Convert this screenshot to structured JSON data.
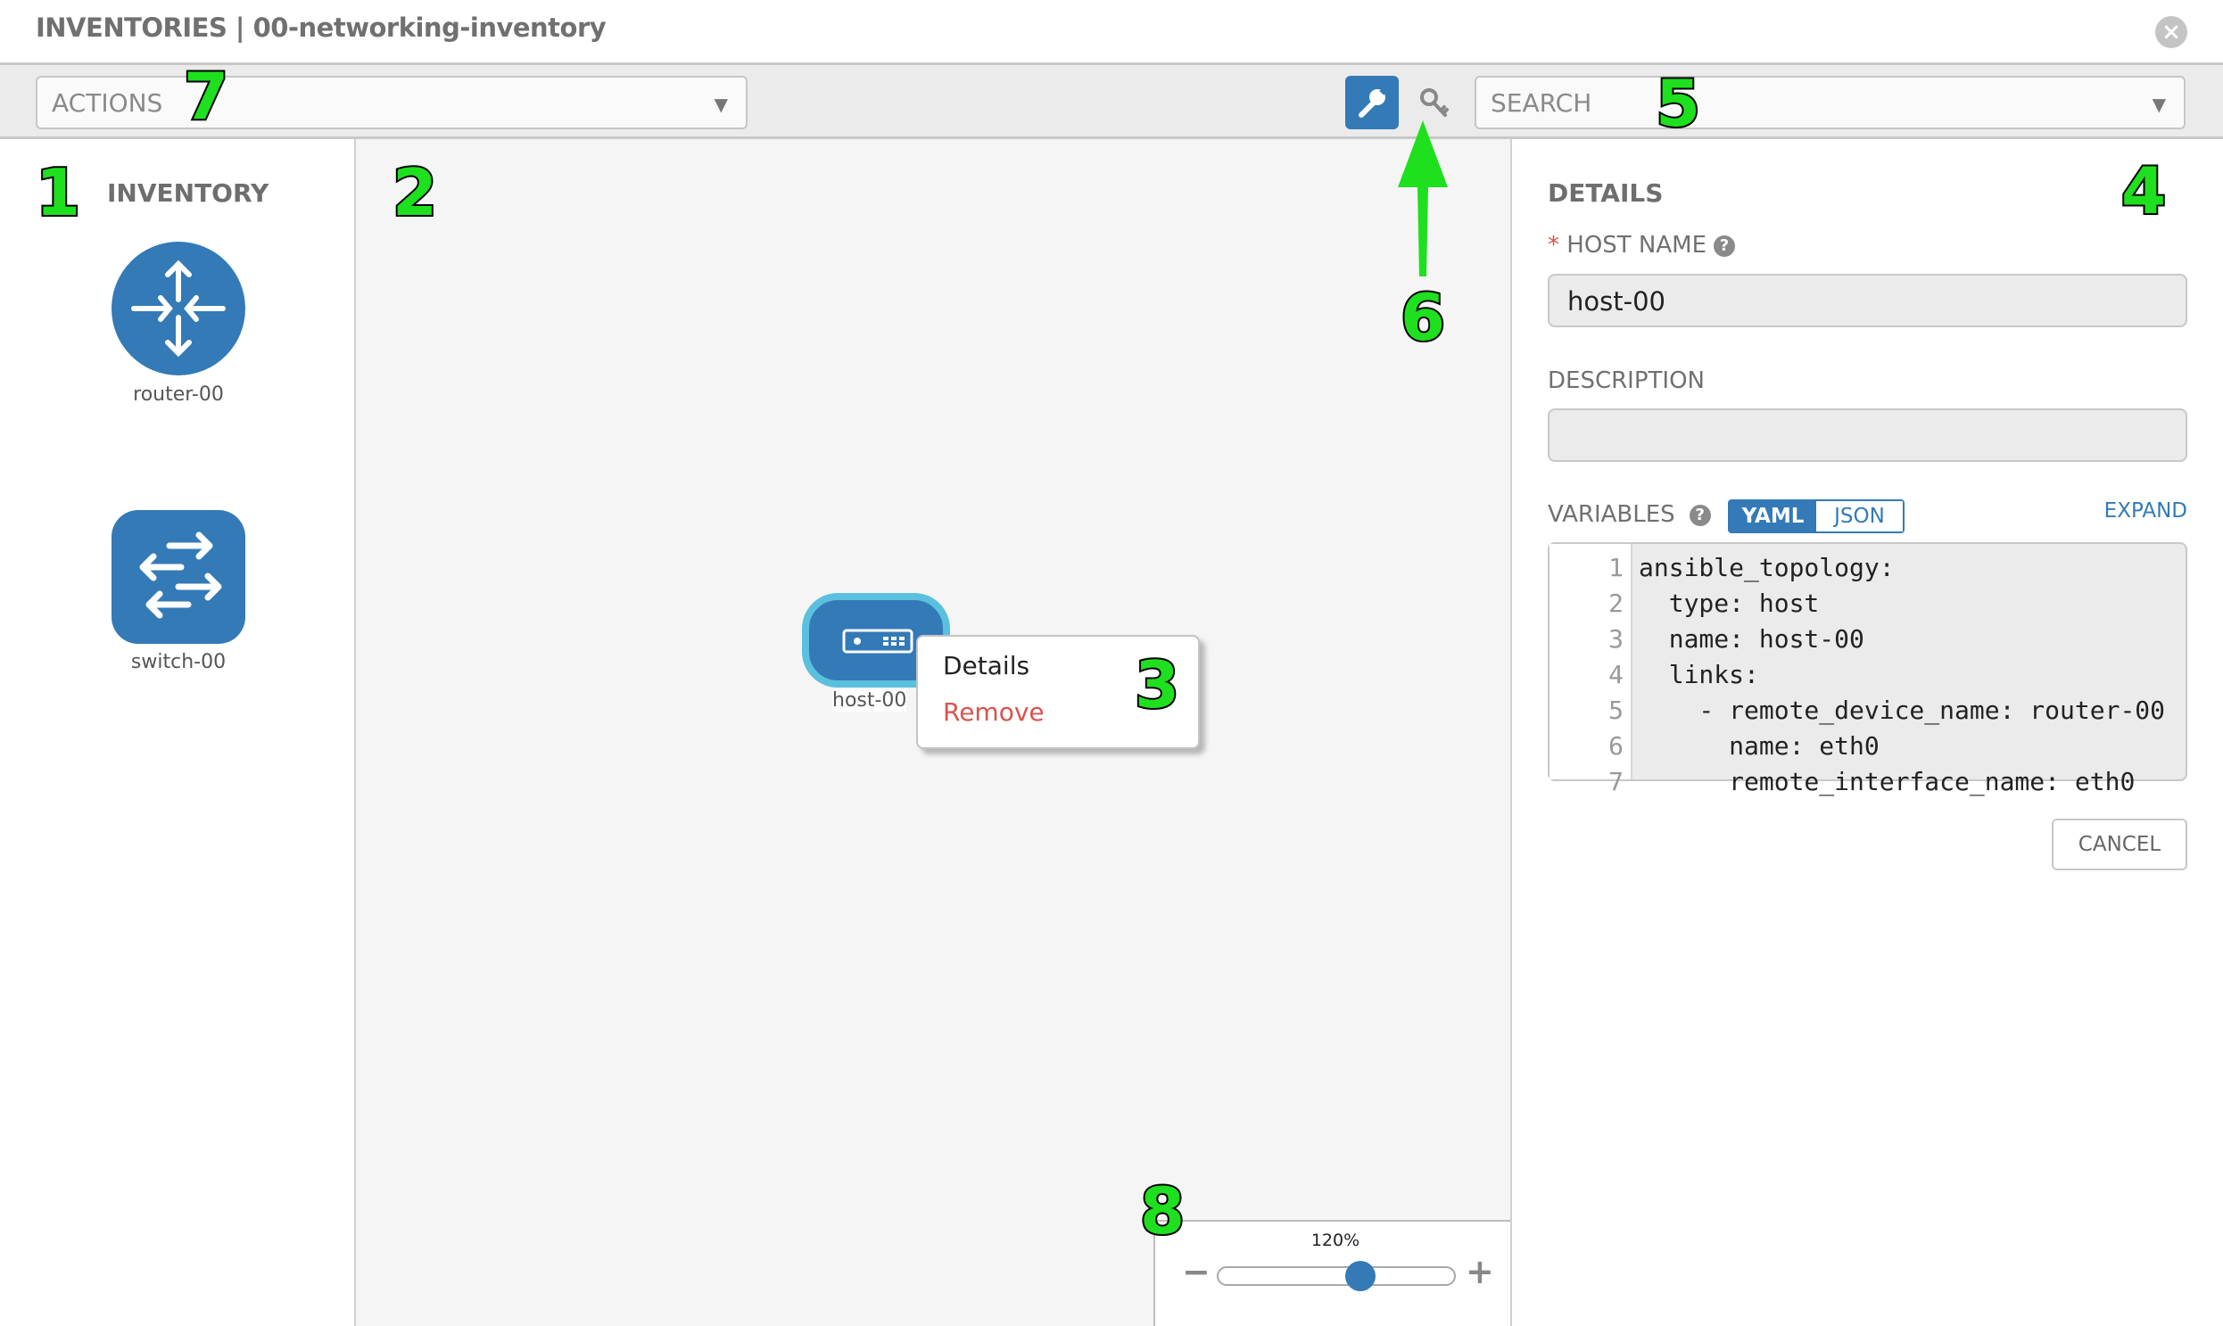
{
  "header": {
    "title": "INVENTORIES | 00-networking-inventory",
    "close_icon": "close-circle-icon"
  },
  "toolbar": {
    "actions_label": "ACTIONS",
    "search_placeholder": "SEARCH",
    "wrench_icon": "wrench-icon",
    "key_icon": "key-icon",
    "accent": "#337ab7"
  },
  "inventory": {
    "title": "INVENTORY",
    "items": [
      {
        "label": "router-00",
        "icon": "router-icon"
      },
      {
        "label": "switch-00",
        "icon": "switch-icon"
      }
    ]
  },
  "canvas": {
    "host": {
      "label": "host-00",
      "icon": "server-icon",
      "border_color": "#5bc0de"
    },
    "context_menu": {
      "items": [
        "Details",
        "Remove"
      ]
    },
    "zoom": {
      "label": "120%",
      "value_fraction": 0.6,
      "minus": "−",
      "plus": "+"
    }
  },
  "details": {
    "title": "DETAILS",
    "host_name_label": "HOST NAME",
    "required_mark": "*",
    "host_name_value": "host-00",
    "description_label": "DESCRIPTION",
    "description_value": "",
    "variables_label": "VARIABLES",
    "yaml_label": "YAML",
    "json_label": "JSON",
    "expand_label": "EXPAND",
    "code_lines": [
      "ansible_topology:",
      "  type: host",
      "  name: host-00",
      "  links:",
      "    - remote_device_name: router-00",
      "      name: eth0",
      "      remote_interface_name: eth0"
    ],
    "cancel_label": "CANCEL"
  },
  "annotations": [
    "1",
    "2",
    "3",
    "4",
    "5",
    "6",
    "7",
    "8"
  ],
  "colors": {
    "primary": "#337ab7",
    "danger": "#d9534f",
    "annotation": "#1ee01e"
  }
}
